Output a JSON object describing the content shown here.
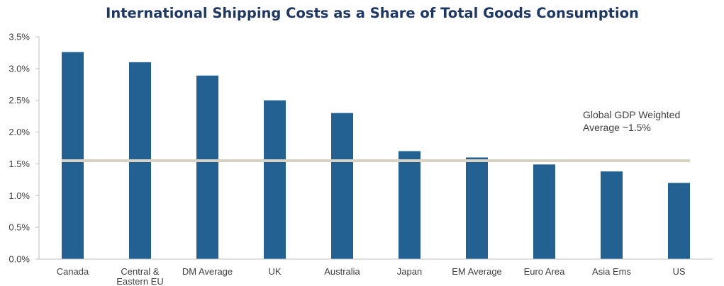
{
  "chart_data": {
    "type": "bar",
    "title": "International Shipping Costs as a Share of Total Goods Consumption",
    "categories": [
      "Canada",
      "Central & Eastern EU",
      "DM Average",
      "UK",
      "Australia",
      "Japan",
      "EM Average",
      "Euro Area",
      "Asia Ems",
      "US"
    ],
    "category_lines": [
      [
        "Canada"
      ],
      [
        "Central &",
        "Eastern EU"
      ],
      [
        "DM Average"
      ],
      [
        "UK"
      ],
      [
        "Australia"
      ],
      [
        "Japan"
      ],
      [
        "EM Average"
      ],
      [
        "Euro Area"
      ],
      [
        "Asia Ems"
      ],
      [
        "US"
      ]
    ],
    "values": [
      3.26,
      3.1,
      2.89,
      2.5,
      2.3,
      1.7,
      1.6,
      1.49,
      1.38,
      1.2
    ],
    "ylim": [
      0,
      3.5
    ],
    "y_ticks": [
      0,
      0.5,
      1.0,
      1.5,
      2.0,
      2.5,
      3.0,
      3.5
    ],
    "y_tick_labels": [
      "0.0%",
      "0.5%",
      "1.0%",
      "1.5%",
      "2.0%",
      "2.5%",
      "3.0%",
      "3.5%"
    ],
    "reference_line": {
      "value": 1.55,
      "label_lines": [
        "Global GDP Weighted",
        "Average ~1.5%"
      ]
    },
    "xlabel": "",
    "ylabel": "",
    "grid": false,
    "bar_color": "#236192",
    "reference_line_color": "#d8d2c4",
    "axis_color": "#bfbfbf"
  }
}
